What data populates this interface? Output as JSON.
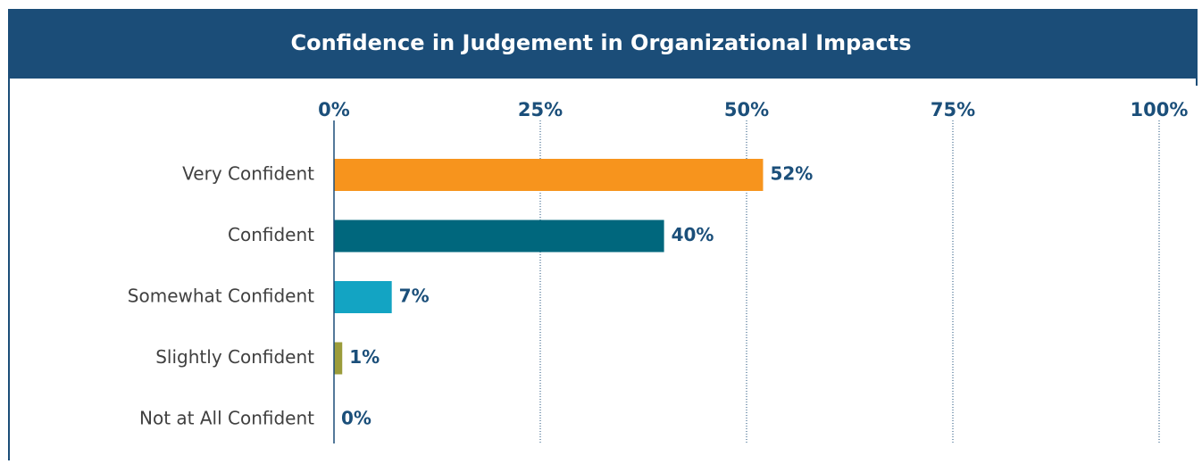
{
  "chart_data": {
    "type": "bar",
    "orientation": "horizontal",
    "title": "Confidence in Judgement in Organizational Impacts",
    "categories": [
      "Very Confident",
      "Confident",
      "Somewhat Confident",
      "Slightly Confident",
      "Not at All Confident"
    ],
    "values": [
      52,
      40,
      7,
      1,
      0
    ],
    "value_labels": [
      "52%",
      "40%",
      "7%",
      "1%",
      "0%"
    ],
    "colors": [
      "#f7941d",
      "#00677d",
      "#13a4c3",
      "#9b9c3b",
      "#9b9c3b"
    ],
    "xlim": [
      0,
      100
    ],
    "xticks": [
      {
        "value": 0,
        "label": "0%"
      },
      {
        "value": 25,
        "label": "25%"
      },
      {
        "value": 50,
        "label": "50%"
      },
      {
        "value": 75,
        "label": "75%"
      },
      {
        "value": 100,
        "label": "100%"
      }
    ],
    "grid": true
  }
}
